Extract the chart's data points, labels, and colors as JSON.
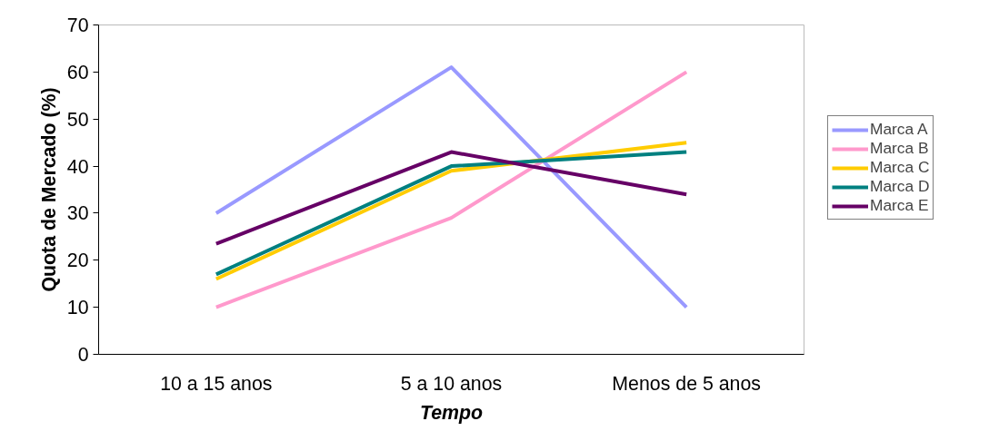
{
  "chart_data": {
    "type": "line",
    "xlabel": "Tempo",
    "ylabel": "Quota de Mercado (%)",
    "categories": [
      "10 a 15 anos",
      "5 a 10 anos",
      "Menos de 5 anos"
    ],
    "series": [
      {
        "name": "Marca A",
        "color": "#9999ff",
        "values": [
          30,
          61,
          10
        ]
      },
      {
        "name": "Marca B",
        "color": "#ff99cc",
        "values": [
          10,
          29,
          60
        ]
      },
      {
        "name": "Marca C",
        "color": "#ffcc00",
        "values": [
          16,
          39,
          45
        ]
      },
      {
        "name": "Marca D",
        "color": "#008080",
        "values": [
          17,
          40,
          43
        ]
      },
      {
        "name": "Marca E",
        "color": "#660066",
        "values": [
          23.5,
          43,
          34
        ]
      }
    ],
    "ylim": [
      0,
      70
    ],
    "yticks": [
      0,
      10,
      20,
      30,
      40,
      50,
      60,
      70
    ],
    "grid": false,
    "legend": "right",
    "marker": "none",
    "line_style": "solid"
  }
}
